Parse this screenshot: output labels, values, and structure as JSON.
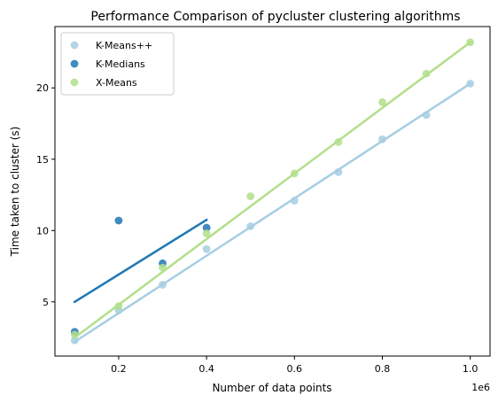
{
  "chart_data": {
    "type": "scatter",
    "title": "Performance Comparison of pycluster clustering algorithms",
    "xlabel": "Number of data points",
    "ylabel": "Time taken to cluster (s)",
    "x_offset_label": "1e6",
    "xlim": [
      0.055,
      1.045
    ],
    "ylim": [
      1.2,
      24.3
    ],
    "x_ticks": [
      0.2,
      0.4,
      0.6,
      0.8,
      1.0
    ],
    "x_tick_labels": [
      "0.2",
      "0.4",
      "0.6",
      "0.8",
      "1.0"
    ],
    "y_ticks": [
      5,
      10,
      15,
      20
    ],
    "y_tick_labels": [
      "5",
      "10",
      "15",
      "20"
    ],
    "grid": false,
    "legend_position": "top-left",
    "series": [
      {
        "name": "K-Means++",
        "color": "#a6cee3",
        "x": [
          0.1,
          0.2,
          0.3,
          0.4,
          0.5,
          0.6,
          0.7,
          0.8,
          0.9,
          1.0
        ],
        "y": [
          2.3,
          4.4,
          6.2,
          8.7,
          10.3,
          12.1,
          14.1,
          16.4,
          18.1,
          20.3
        ],
        "fit": {
          "x": [
            0.1,
            1.0
          ],
          "y": [
            2.2,
            20.3
          ]
        }
      },
      {
        "name": "K-Medians",
        "color": "#1f78b4",
        "x": [
          0.1,
          0.2,
          0.3,
          0.4
        ],
        "y": [
          2.9,
          10.7,
          7.7,
          10.2
        ],
        "fit": {
          "x": [
            0.1,
            0.4
          ],
          "y": [
            5.0,
            10.75
          ]
        }
      },
      {
        "name": "X-Means",
        "color": "#b2df8a",
        "x": [
          0.1,
          0.2,
          0.3,
          0.4,
          0.5,
          0.6,
          0.7,
          0.8,
          0.9,
          1.0
        ],
        "y": [
          2.7,
          4.7,
          7.4,
          9.8,
          12.4,
          14.0,
          16.2,
          19.0,
          21.0,
          23.2
        ],
        "fit": {
          "x": [
            0.1,
            1.0
          ],
          "y": [
            2.5,
            23.2
          ]
        }
      }
    ]
  }
}
